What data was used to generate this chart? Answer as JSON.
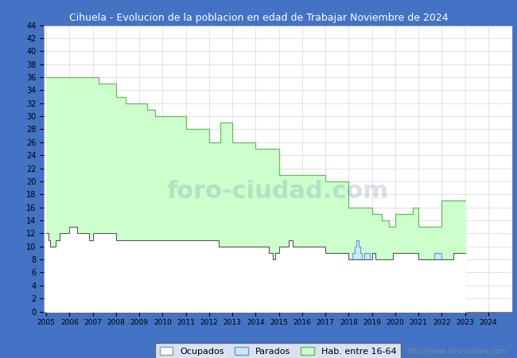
{
  "title": "Cihuela - Evolucion de la poblacion en edad de Trabajar Noviembre de 2024",
  "title_bg_color": "#4472C4",
  "title_text_color": "#FFFFFF",
  "ylim": [
    0,
    44
  ],
  "ytick_step": 2,
  "hab_color_fill": "#CCFFCC",
  "hab_color_line": "#66BB66",
  "ocupados_color_fill": "#FFFFFF",
  "ocupados_color_line": "#555555",
  "parados_color_fill": "#CCE8FF",
  "parados_color_line": "#6699CC",
  "grid_color": "#CCCCCC",
  "plot_bg_color": "#FFFFFF",
  "outer_bg_color": "#4472C4",
  "watermark": "http://www.foro-ciudad.com",
  "watermark_big": "foro-ciudad.com",
  "legend_labels": [
    "Ocupados",
    "Parados",
    "Hab. entre 16-64"
  ],
  "figsize": [
    6.5,
    4.5
  ],
  "dpi": 100,
  "hab_monthly": [
    36,
    36,
    36,
    36,
    36,
    36,
    36,
    36,
    36,
    36,
    36,
    36,
    36,
    36,
    36,
    36,
    36,
    36,
    36,
    36,
    36,
    36,
    36,
    36,
    36,
    36,
    36,
    35,
    35,
    35,
    35,
    35,
    35,
    35,
    35,
    35,
    33,
    33,
    33,
    33,
    33,
    32,
    32,
    32,
    32,
    32,
    32,
    32,
    32,
    32,
    32,
    32,
    31,
    31,
    31,
    31,
    30,
    30,
    30,
    30,
    30,
    30,
    30,
    30,
    30,
    30,
    30,
    30,
    30,
    30,
    30,
    30,
    28,
    28,
    28,
    28,
    28,
    28,
    28,
    28,
    28,
    28,
    28,
    28,
    26,
    26,
    26,
    26,
    26,
    26,
    29,
    29,
    29,
    29,
    29,
    29,
    26,
    26,
    26,
    26,
    26,
    26,
    26,
    26,
    26,
    26,
    26,
    26,
    25,
    25,
    25,
    25,
    25,
    25,
    25,
    25,
    25,
    25,
    25,
    25,
    21,
    21,
    21,
    21,
    21,
    21,
    21,
    21,
    21,
    21,
    21,
    21,
    21,
    21,
    21,
    21,
    21,
    21,
    21,
    21,
    21,
    21,
    21,
    21,
    20,
    20,
    20,
    20,
    20,
    20,
    20,
    20,
    20,
    20,
    20,
    20,
    16,
    16,
    16,
    16,
    16,
    16,
    16,
    16,
    16,
    16,
    16,
    16,
    15,
    15,
    15,
    15,
    15,
    14,
    14,
    14,
    14,
    13,
    13,
    13,
    15,
    15,
    15,
    15,
    15,
    15,
    15,
    15,
    15,
    16,
    16,
    16,
    13,
    13,
    13,
    13,
    13,
    13,
    13,
    13,
    13,
    13,
    13,
    13,
    17,
    17,
    17,
    17,
    17,
    17,
    17,
    17,
    17,
    17,
    17,
    17,
    17
  ],
  "ocu_monthly": [
    12,
    11,
    10,
    10,
    10,
    11,
    11,
    12,
    12,
    12,
    12,
    12,
    13,
    13,
    13,
    13,
    12,
    12,
    12,
    12,
    12,
    12,
    11,
    11,
    12,
    12,
    12,
    12,
    12,
    12,
    12,
    12,
    12,
    12,
    12,
    12,
    11,
    11,
    11,
    11,
    11,
    11,
    11,
    11,
    11,
    11,
    11,
    11,
    11,
    11,
    11,
    11,
    11,
    11,
    11,
    11,
    11,
    11,
    11,
    11,
    11,
    11,
    11,
    11,
    11,
    11,
    11,
    11,
    11,
    11,
    11,
    11,
    11,
    11,
    11,
    11,
    11,
    11,
    11,
    11,
    11,
    11,
    11,
    11,
    11,
    11,
    11,
    11,
    11,
    10,
    10,
    10,
    10,
    10,
    10,
    10,
    10,
    10,
    10,
    10,
    10,
    10,
    10,
    10,
    10,
    10,
    10,
    10,
    10,
    10,
    10,
    10,
    10,
    10,
    10,
    9,
    9,
    8,
    9,
    9,
    10,
    10,
    10,
    10,
    10,
    11,
    11,
    10,
    10,
    10,
    10,
    10,
    10,
    10,
    10,
    10,
    10,
    10,
    10,
    10,
    10,
    10,
    10,
    10,
    9,
    9,
    9,
    9,
    9,
    9,
    9,
    9,
    9,
    9,
    9,
    9,
    8,
    8,
    8,
    8,
    8,
    8,
    8,
    8,
    8,
    8,
    8,
    8,
    9,
    9,
    8,
    8,
    8,
    8,
    8,
    8,
    8,
    8,
    8,
    9,
    9,
    9,
    9,
    9,
    9,
    9,
    9,
    9,
    9,
    9,
    9,
    9,
    8,
    8,
    8,
    8,
    8,
    8,
    8,
    8,
    8,
    8,
    8,
    8,
    8,
    8,
    8,
    8,
    8,
    8,
    9,
    9,
    9,
    9,
    9,
    9,
    9
  ],
  "par_monthly": [
    0,
    0,
    0,
    0,
    0,
    0,
    0,
    0,
    0,
    0,
    0,
    0,
    0,
    0,
    0,
    0,
    0,
    0,
    0,
    0,
    0,
    0,
    0,
    0,
    0,
    0,
    0,
    0,
    0,
    0,
    0,
    0,
    0,
    0,
    0,
    0,
    0,
    0,
    0,
    0,
    0,
    0,
    0,
    0,
    0,
    0,
    0,
    0,
    0,
    0,
    0,
    0,
    0,
    0,
    0,
    0,
    0,
    0,
    0,
    0,
    0,
    0,
    0,
    0,
    0,
    0,
    0,
    0,
    0,
    0,
    0,
    0,
    0,
    0,
    0,
    0,
    0,
    0,
    0,
    0,
    0,
    0,
    0,
    0,
    0,
    0,
    0,
    0,
    0,
    0,
    0,
    0,
    0,
    0,
    0,
    0,
    0,
    0,
    0,
    0,
    0,
    0,
    0,
    0,
    0,
    0,
    0,
    0,
    0,
    0,
    0,
    0,
    0,
    0,
    0,
    0,
    0,
    0,
    0,
    0,
    0,
    0,
    0,
    0,
    0,
    0,
    0,
    0,
    0,
    0,
    0,
    0,
    0,
    0,
    0,
    0,
    0,
    0,
    0,
    0,
    0,
    0,
    0,
    0,
    9,
    9,
    9,
    9,
    9,
    9,
    9,
    9,
    9,
    9,
    9,
    9,
    8,
    8,
    9,
    10,
    11,
    10,
    9,
    8,
    9,
    9,
    9,
    8,
    6,
    6,
    7,
    7,
    7,
    7,
    7,
    7,
    7,
    7,
    7,
    7,
    8,
    8,
    8,
    8,
    9,
    9,
    9,
    9,
    9,
    8,
    8,
    8,
    8,
    8,
    8,
    8,
    8,
    8,
    8,
    8,
    9,
    9,
    9,
    9,
    8,
    8,
    8,
    8,
    8,
    8,
    8,
    8,
    8,
    8,
    8,
    8,
    7
  ]
}
